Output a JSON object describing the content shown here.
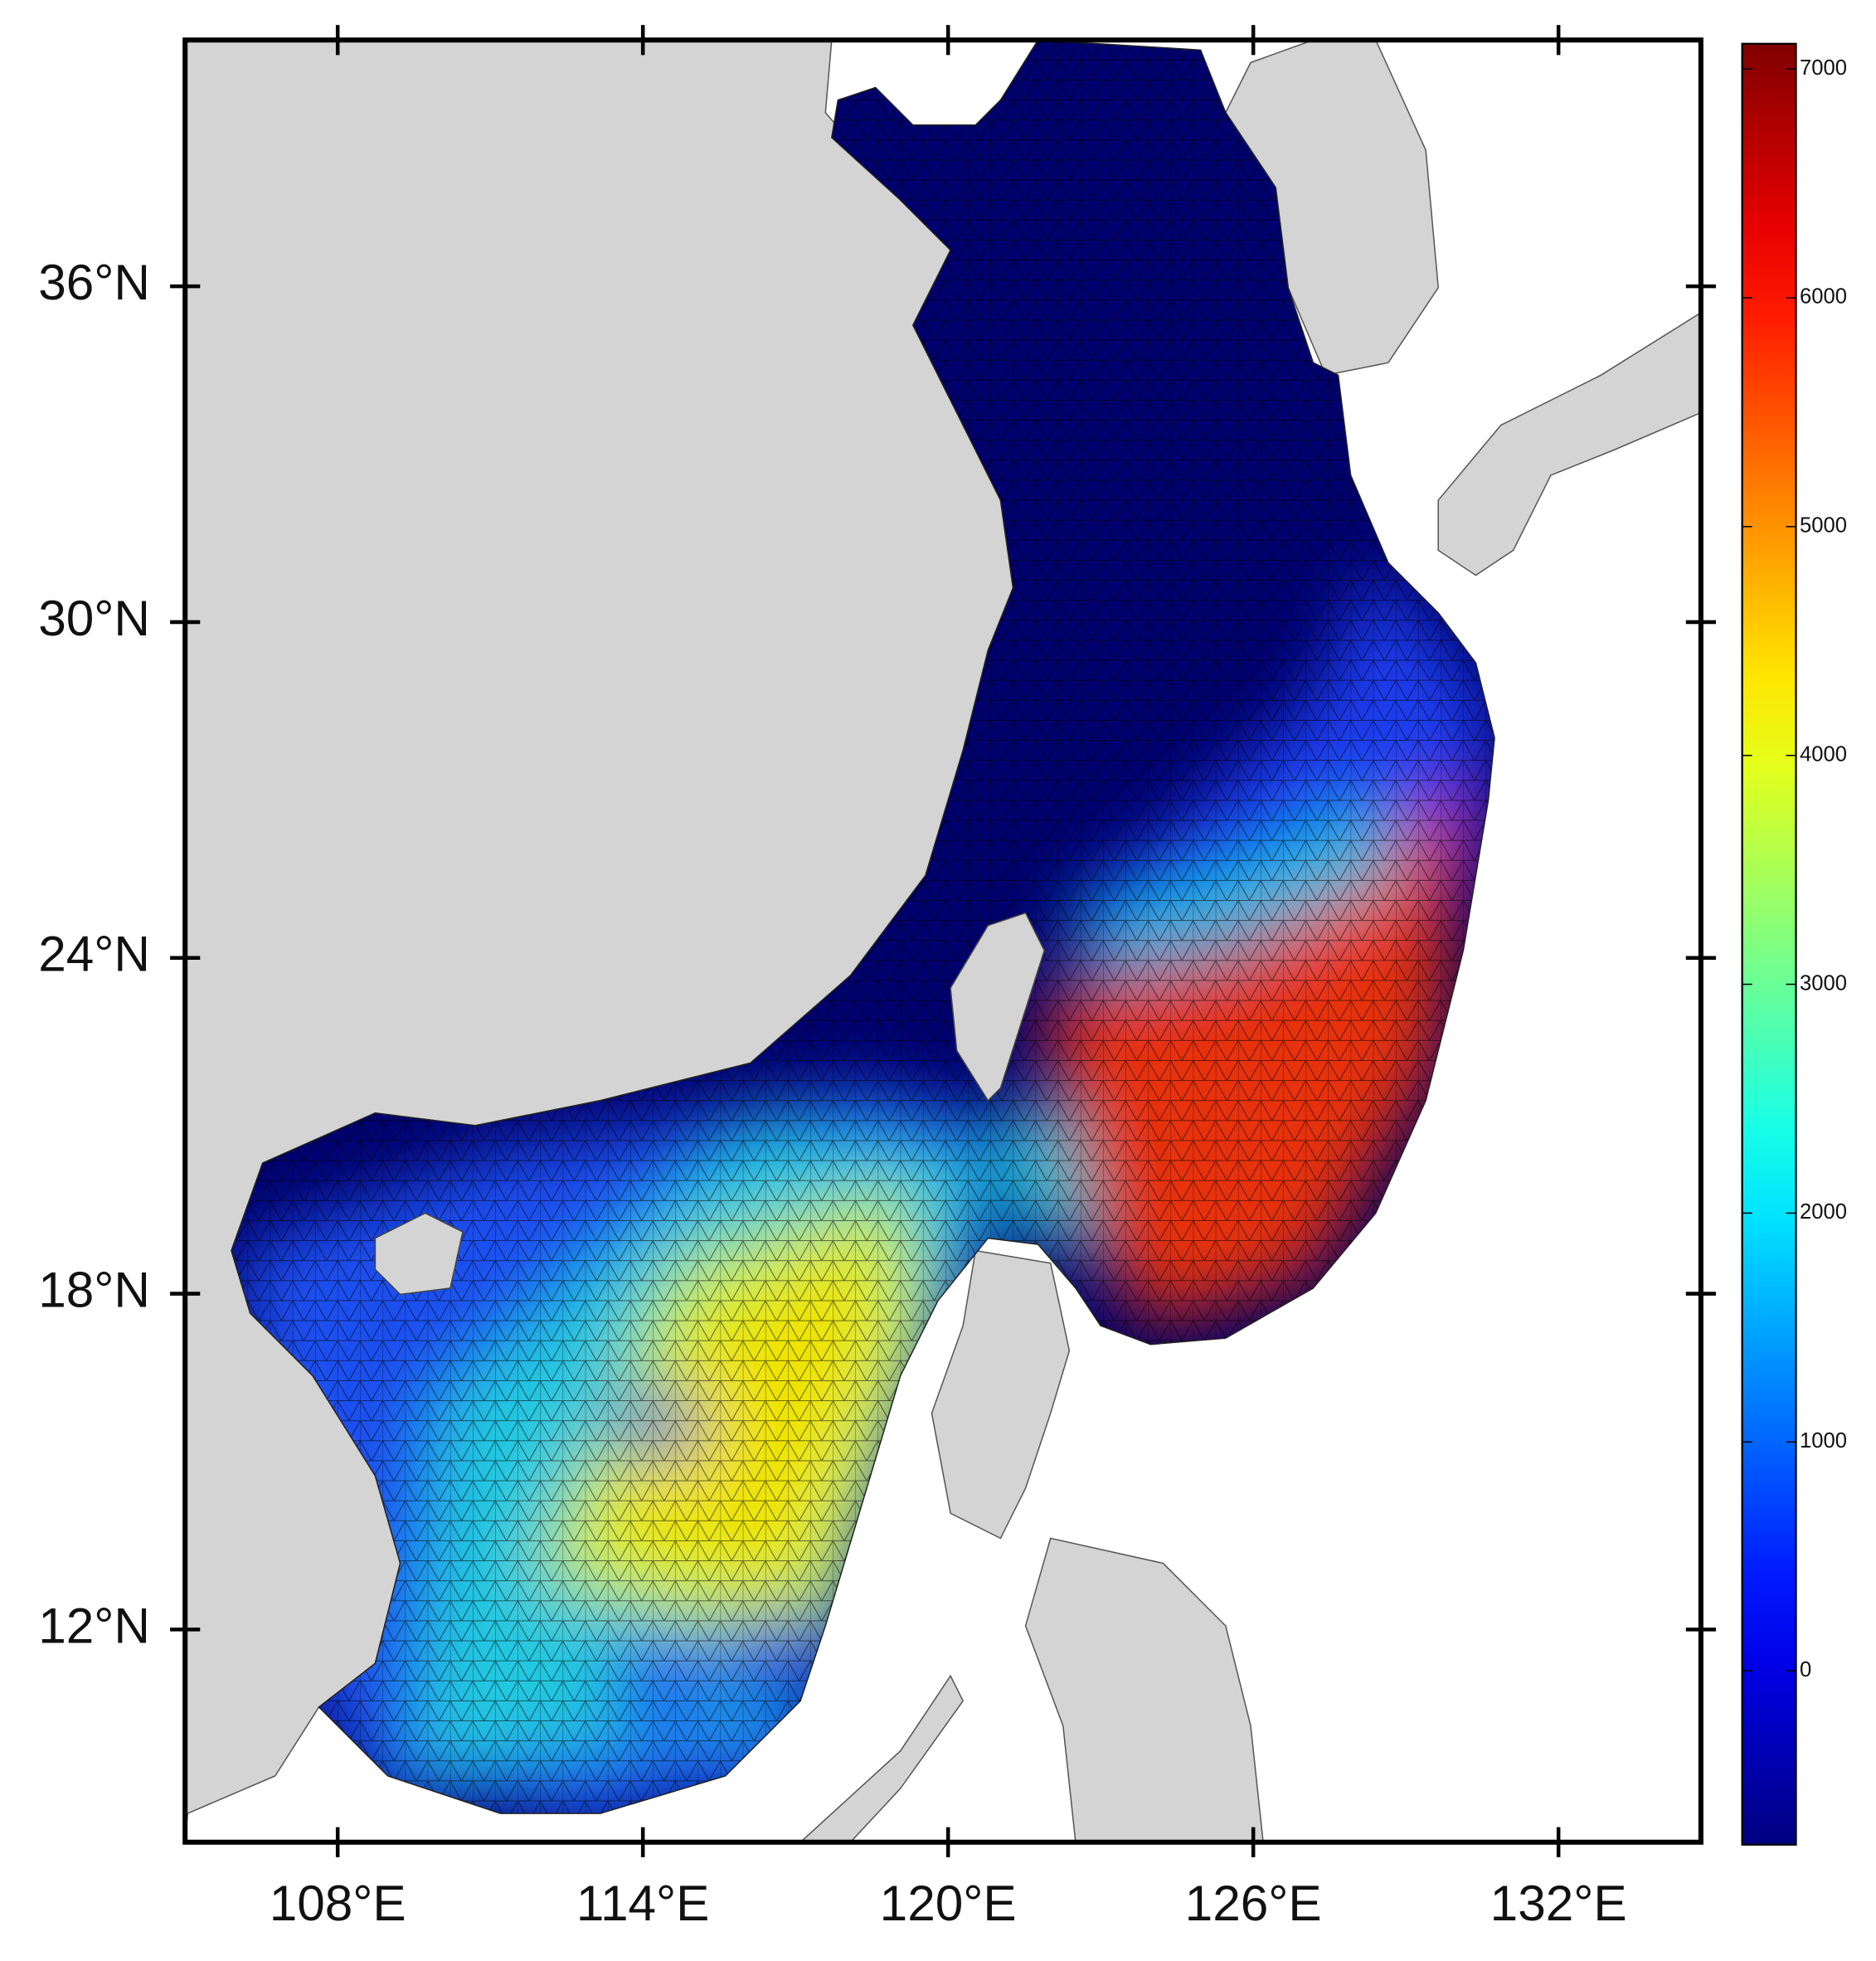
{
  "map": {
    "xlim": [
      105,
      134.8
    ],
    "ylim": [
      8.2,
      40.4
    ],
    "xticks": [
      {
        "value": 108,
        "label": "108°E"
      },
      {
        "value": 114,
        "label": "114°E"
      },
      {
        "value": 120,
        "label": "120°E"
      },
      {
        "value": 126,
        "label": "126°E"
      },
      {
        "value": 132,
        "label": "132°E"
      }
    ],
    "yticks": [
      {
        "value": 12,
        "label": "12°N"
      },
      {
        "value": 18,
        "label": "18°N"
      },
      {
        "value": 24,
        "label": "24°N"
      },
      {
        "value": 30,
        "label": "30°N"
      },
      {
        "value": 36,
        "label": "36°N"
      }
    ],
    "colorbar": {
      "colormap": "jet",
      "lim": [
        -760,
        7110
      ],
      "ticks": [
        0,
        1000,
        2000,
        3000,
        4000,
        5000,
        6000,
        7000
      ]
    }
  }
}
